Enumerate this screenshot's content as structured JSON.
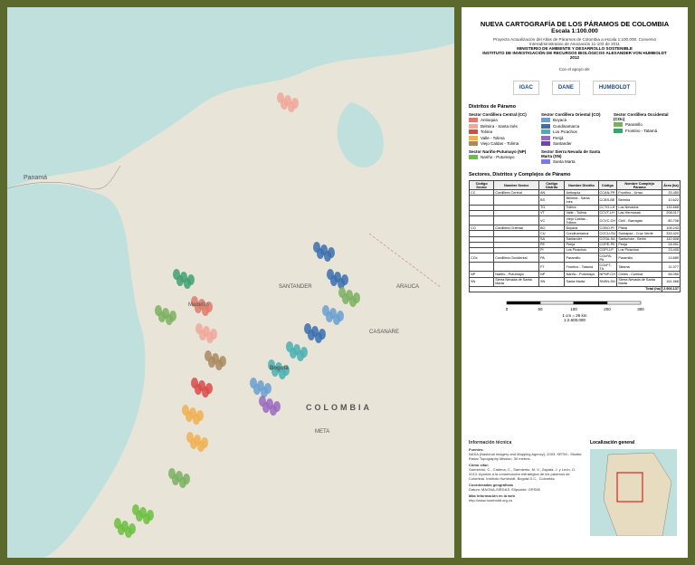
{
  "map": {
    "labels": [
      "Panamá",
      "COLOMBIA",
      "Bogotá",
      "Medellín",
      "SANTANDER",
      "ARAUCA",
      "CASANARE",
      "META"
    ]
  },
  "header": {
    "title": "NUEVA CARTOGRAFÍA DE LOS PÁRAMOS DE COLOMBIA",
    "scale": "Escala 1:100.000",
    "project": "Proyecto Actualización del Atlas de Páramos de Colombia a escala 1:100.000. Convenio Interadministrativo de Asociación 11-103 de 2011",
    "ministry": "MINISTERIO DE AMBIENTE Y DESARROLLO SOSTENIBLE",
    "institute": "INSTITUTO DE INVESTIGACIÓN DE RECURSOS BIOLÓGICOS ALEXANDER VON HUMBOLDT",
    "year": "2012"
  },
  "support": {
    "label": "Con el apoyo de:",
    "logos": [
      "IGAC",
      "DANE",
      "HUMBOLDT"
    ]
  },
  "legend": {
    "title": "Distritos de Páramo",
    "sectors": [
      {
        "name": "Sector Cordillera Central (CC)",
        "items": [
          {
            "name": "Antioquia",
            "color": "#e07a6a"
          },
          {
            "name": "Belmira - Santa Inés",
            "color": "#f0a89a"
          },
          {
            "name": "Tolima",
            "color": "#d94a4a"
          },
          {
            "name": "Valle - Tolima",
            "color": "#f0b050"
          },
          {
            "name": "Viejo Caldas - Tolima",
            "color": "#a88a60"
          }
        ]
      },
      {
        "name": "Sector Cordillera Oriental (CO)",
        "items": [
          {
            "name": "Boyacá",
            "color": "#6aa0d0"
          },
          {
            "name": "Cundinamarca",
            "color": "#3a6eb0"
          },
          {
            "name": "Los Picachos",
            "color": "#4ab0b0"
          },
          {
            "name": "Perijá",
            "color": "#9a6ac0"
          },
          {
            "name": "Santander",
            "color": "#6a4aa0"
          }
        ]
      },
      {
        "name": "Sector Cordillera Occidental (COc)",
        "items": [
          {
            "name": "Paramillo",
            "color": "#7ab060"
          },
          {
            "name": "Frontino - Tatamá",
            "color": "#40a070"
          }
        ]
      },
      {
        "name": "Sector Nariño-Putumayo (NP)",
        "items": [
          {
            "name": "Nariño - Putumayo",
            "color": "#6ac040"
          }
        ]
      },
      {
        "name": "Sector Sierra Nevada de Santa Marta (SN)",
        "items": [
          {
            "name": "Santa Marta",
            "color": "#7a7ae0"
          }
        ]
      }
    ]
  },
  "table": {
    "title": "Sectores, Distritos y Complejos de Páramo",
    "header": [
      "Código Sector",
      "Nombre Sector",
      "Código Distrito",
      "Nombre Distrito",
      "Código",
      "Nombre Complejo Páramo",
      "Área (ha)"
    ],
    "rows": [
      [
        "CC",
        "Cordillera Central",
        "AN",
        "Antioquia",
        "CCAN-FR",
        "Frontino - Urrao",
        "33.450"
      ],
      [
        "",
        "",
        "BS",
        "Belmira - Santa Inés",
        "CCBS-BE",
        "Belmira",
        "10.622"
      ],
      [
        "",
        "",
        "TO",
        "Tolima",
        "CCTO-LH",
        "Los Nevados",
        "133.666"
      ],
      [
        "",
        "",
        "VT",
        "Valle - Tolima",
        "CCVT-LH",
        "Las Hermosas",
        "208.017"
      ],
      [
        "",
        "",
        "VC",
        "Viejo Caldas - Tolima",
        "CCVC-CH",
        "Chilí - Barragán",
        "80.708"
      ],
      [
        "CO",
        "Cordillera Oriental",
        "BO",
        "Boyacá",
        "COBO-PI",
        "Pisba",
        "106.243"
      ],
      [
        "",
        "",
        "CU",
        "Cundinamarca",
        "COCU-SU",
        "Sumapaz - Cruz Verde",
        "333.420"
      ],
      [
        "",
        "",
        "SA",
        "Santander",
        "COSA-SA",
        "Santurbán - Berlín",
        "142.608"
      ],
      [
        "",
        "",
        "PE",
        "Perijá",
        "COPE-PE",
        "Perijá",
        "28.991"
      ],
      [
        "",
        "",
        "PI",
        "Los Picachos",
        "COPI-LP",
        "Los Picachos",
        "23.405"
      ],
      [
        "COc",
        "Cordillera Occidental",
        "PA",
        "Paramillo",
        "COcPA-PA",
        "Paramillo",
        "13.689"
      ],
      [
        "",
        "",
        "FT",
        "Frontino - Tatamá",
        "COcFT-TA",
        "Tatamá",
        "11.077"
      ],
      [
        "NP",
        "Nariño - Putumayo",
        "NP",
        "Nariño - Putumayo",
        "NPNP-CH",
        "Chiles - Cumbal",
        "55.055"
      ],
      [
        "SN",
        "Sierra Nevada de Santa Marta",
        "SN",
        "Santa Marta",
        "SNSN-SN",
        "Sierra Nevada de Santa Marta",
        "151.968"
      ]
    ],
    "total_label": "Total (ha)",
    "total": "2.906.137"
  },
  "scale": {
    "ratio": "1 cm = 26 km",
    "scale": "1:2.600.000",
    "ticks": [
      "0",
      "50",
      "100",
      "200",
      "300"
    ]
  },
  "info": {
    "title": "Información técnica",
    "sections": [
      {
        "heading": "Fuentes:",
        "text": "NASA (Nasional Imagery and Mapping Agency), 2003. SRTM - Shuttle Radar Topography Mission, 30 metros."
      },
      {
        "heading": "Cómo citar:",
        "text": "Sarmiento, C., Cadena, C., Sarmiento, M. V., Zapata, J. y León, O. 2013. Aportes a la conservación estratégica de los páramos de Colombia. Instituto Humboldt, Bogotá D.C., Colombia."
      },
      {
        "heading": "Coordenadas geográficas",
        "text": "Datum: MAGNA-SIRGAS. Elipsoide: GRS80"
      },
      {
        "heading": "Más información en la web",
        "text": "http://www.humboldt.org.co"
      }
    ]
  },
  "location": {
    "title": "Localización general"
  }
}
